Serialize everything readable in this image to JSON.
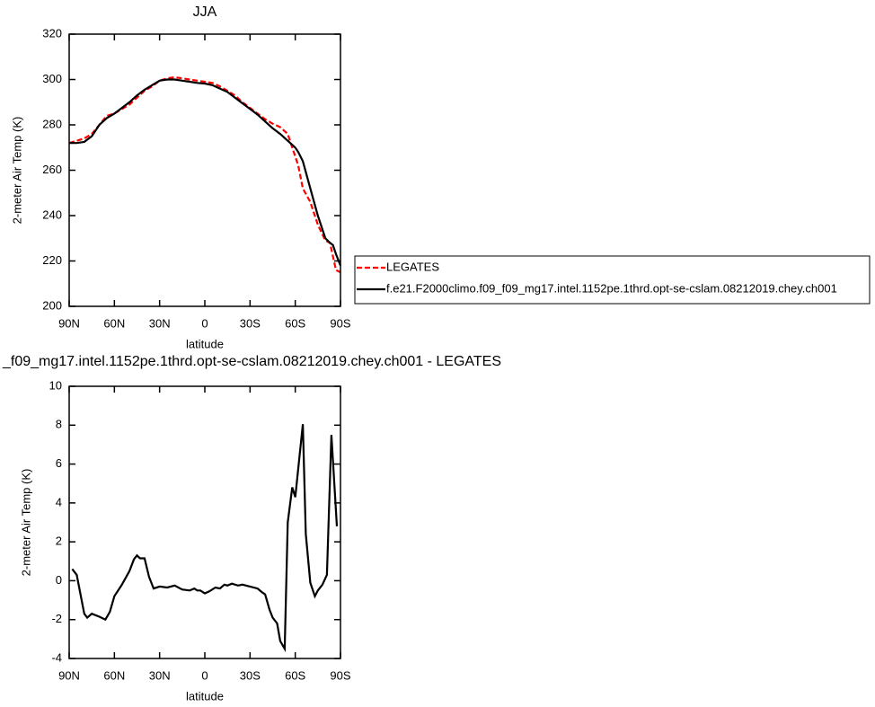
{
  "chart_data": [
    {
      "type": "line",
      "title": "JJA",
      "xlabel": "latitude",
      "ylabel": "2-meter Air Temp (K)",
      "x": [
        90,
        85,
        80,
        75,
        70,
        65,
        60,
        55,
        50,
        45,
        40,
        35,
        30,
        25,
        20,
        15,
        10,
        5,
        0,
        -5,
        -10,
        -15,
        -20,
        -25,
        -30,
        -35,
        -40,
        -45,
        -50,
        -55,
        -60,
        -62,
        -65,
        -70,
        -75,
        -80,
        -83,
        -85,
        -87,
        -90
      ],
      "xlim": [
        90,
        -90
      ],
      "xticks": [
        {
          "value": 90,
          "label": "90N"
        },
        {
          "value": 60,
          "label": "60N"
        },
        {
          "value": 30,
          "label": "30N"
        },
        0,
        {
          "value": -30,
          "label": "30S"
        },
        {
          "value": -60,
          "label": "60S"
        },
        {
          "value": -90,
          "label": "90S"
        }
      ],
      "ylim": [
        200,
        320
      ],
      "yticks": [
        200,
        220,
        240,
        260,
        280,
        300,
        320
      ],
      "legend": "outside-right",
      "series": [
        {
          "name": "LEGATES",
          "color": "#ff0000",
          "dash": "dashed",
          "values": [
            272,
            273,
            274,
            276,
            280,
            284,
            285,
            287,
            289,
            292,
            295,
            297,
            299.5,
            300.5,
            301,
            300.5,
            300,
            299.5,
            299,
            298.5,
            297,
            295,
            293,
            290,
            287.5,
            285,
            282.5,
            280.5,
            279,
            276,
            266,
            262,
            252,
            246,
            236,
            229,
            228,
            222,
            216,
            215
          ]
        },
        {
          "name": "f.e21.F2000climo.f09_f09_mg17.intel.1152pe.1thrd.opt-se-cslam.08212019.chey.ch001",
          "color": "#000000",
          "dash": "solid",
          "values": [
            272,
            272,
            272.5,
            275,
            280,
            283,
            285,
            287.5,
            290,
            293,
            295.5,
            297.5,
            299.5,
            300,
            300,
            299.5,
            299,
            298.5,
            298.2,
            297.5,
            296,
            294.5,
            292,
            289.5,
            287,
            284.5,
            281.5,
            278.5,
            276,
            273,
            270,
            268,
            264,
            252,
            240,
            230,
            228,
            227,
            223,
            218
          ]
        }
      ]
    },
    {
      "type": "line",
      "title": "_f09_mg17.intel.1152pe.1thrd.opt-se-cslam.08212019.chey.ch001 - LEGATES",
      "xlabel": "latitude",
      "ylabel": "2-meter Air Temp (K)",
      "x": [
        88,
        85,
        80,
        78,
        75,
        70,
        66,
        63,
        60,
        55,
        50,
        47,
        45,
        43,
        40,
        37,
        34,
        30,
        25,
        20,
        15,
        10,
        7,
        5,
        3,
        0,
        -3,
        -7,
        -10,
        -13,
        -15,
        -18,
        -22,
        -25,
        -30,
        -35,
        -38,
        -40,
        -43,
        -45,
        -48,
        -50,
        -53,
        -55,
        -58,
        -60,
        -65,
        -67,
        -70,
        -73,
        -75,
        -78,
        -81,
        -84,
        -87.6
      ],
      "xlim": [
        90,
        -90
      ],
      "xticks": [
        {
          "value": 90,
          "label": "90N"
        },
        {
          "value": 60,
          "label": "60N"
        },
        {
          "value": 30,
          "label": "30N"
        },
        0,
        {
          "value": -30,
          "label": "30S"
        },
        {
          "value": -60,
          "label": "60S"
        },
        {
          "value": -90,
          "label": "90S"
        }
      ],
      "ylim": [
        -4,
        10
      ],
      "yticks": [
        -4,
        -2,
        0,
        2,
        4,
        6,
        8,
        10
      ],
      "color": "#000000",
      "values": [
        0.6,
        0.3,
        -1.7,
        -1.9,
        -1.7,
        -1.85,
        -2.0,
        -1.6,
        -0.8,
        -0.2,
        0.5,
        1.1,
        1.3,
        1.15,
        1.15,
        0.2,
        -0.4,
        -0.3,
        -0.35,
        -0.25,
        -0.45,
        -0.5,
        -0.4,
        -0.5,
        -0.5,
        -0.65,
        -0.55,
        -0.35,
        -0.4,
        -0.2,
        -0.25,
        -0.15,
        -0.25,
        -0.2,
        -0.3,
        -0.4,
        -0.6,
        -0.7,
        -1.5,
        -1.9,
        -2.2,
        -3.1,
        -3.5,
        3.0,
        4.8,
        4.3,
        8.05,
        2.4,
        -0.1,
        -0.8,
        -0.5,
        -0.2,
        0.3,
        7.5,
        2.8
      ]
    }
  ]
}
